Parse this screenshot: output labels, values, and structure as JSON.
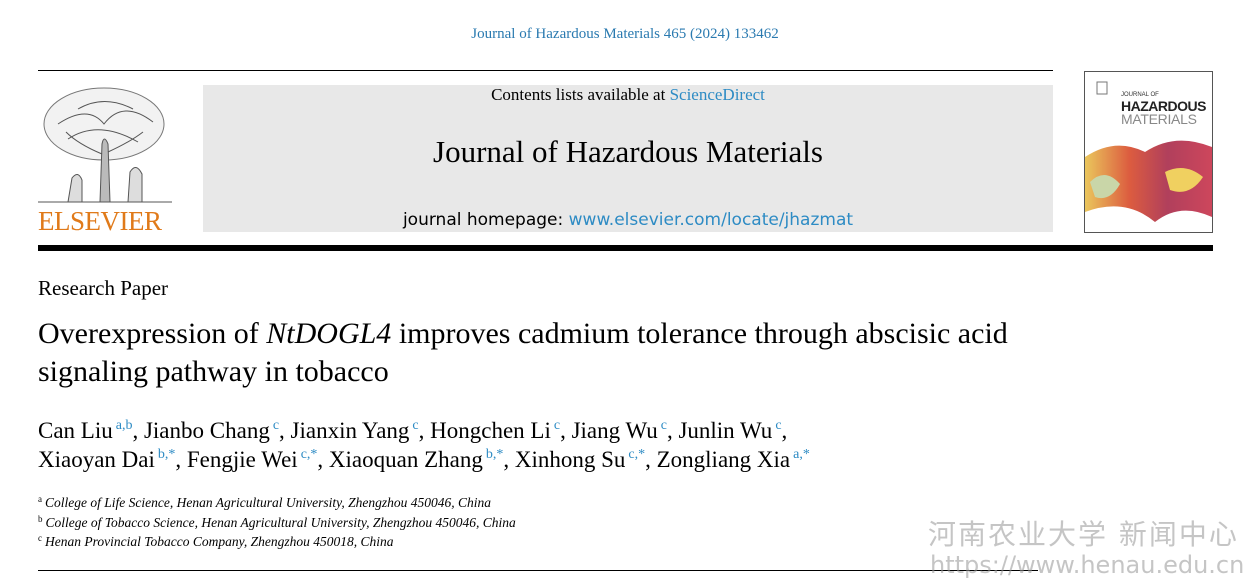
{
  "header": {
    "citation": "Journal of Hazardous Materials 465 (2024) 133462",
    "publisher": "ELSEVIER",
    "contents_prefix": "Contents lists available at",
    "contents_link": "ScienceDirect",
    "journal": "Journal of Hazardous Materials",
    "homepage_prefix": "journal homepage:",
    "homepage_link": "www.elsevier.com/locate/jhazmat",
    "cover": {
      "line1": "JOURNAL OF",
      "line2": "HAZARDOUS",
      "line3": "MATERIALS"
    }
  },
  "article": {
    "type": "Research Paper",
    "title": {
      "before": "Overexpression of",
      "gene": "NtDOGL4",
      "after": "improves cadmium tolerance through abscisic acid signaling pathway in tobacco"
    },
    "separator": ",",
    "author_lines": [
      [
        {
          "name": "Can Liu",
          "sup": "a,b"
        },
        {
          "name": "Jianbo Chang",
          "sup": "c"
        },
        {
          "name": "Jianxin Yang",
          "sup": "c"
        },
        {
          "name": "Hongchen Li",
          "sup": "c"
        },
        {
          "name": "Jiang Wu",
          "sup": "c"
        },
        {
          "name": "Junlin Wu",
          "sup": "c"
        }
      ],
      [
        {
          "name": "Xiaoyan Dai",
          "sup": "b,*"
        },
        {
          "name": "Fengjie Wei",
          "sup": "c,*"
        },
        {
          "name": "Xiaoquan Zhang",
          "sup": "b,*"
        },
        {
          "name": "Xinhong Su",
          "sup": "c,*"
        },
        {
          "name": "Zongliang Xia",
          "sup": "a,*"
        }
      ]
    ],
    "affiliations": [
      {
        "key": "a",
        "text": "College of Life Science, Henan Agricultural University, Zhengzhou 450046, China"
      },
      {
        "key": "b",
        "text": "College of Tobacco Science, Henan Agricultural University, Zhengzhou 450046, China"
      },
      {
        "key": "c",
        "text": "Henan Provincial Tobacco Company, Zhengzhou 450018, China"
      }
    ]
  },
  "watermark": {
    "name": "河南农业大学 新闻中心",
    "url": "https://www.henau.edu.cn"
  }
}
